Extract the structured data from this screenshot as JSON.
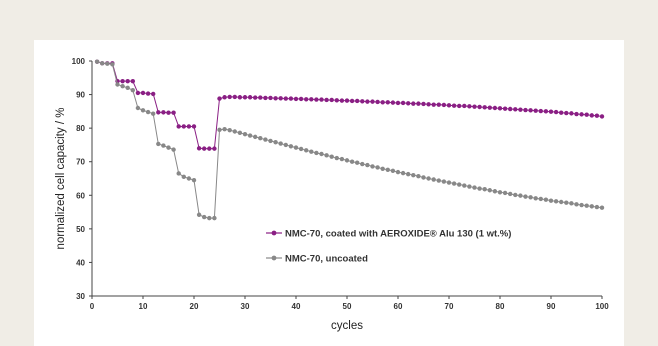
{
  "chart_data": {
    "type": "line",
    "xlabel": "cycles",
    "ylabel": "normalized cell capacity / %",
    "xlim": [
      0,
      100
    ],
    "ylim": [
      30,
      100
    ],
    "x_ticks": [
      "0",
      "10",
      "20",
      "30",
      "40",
      "50",
      "60",
      "70",
      "80",
      "90",
      "100"
    ],
    "y_ticks": [
      "30",
      "40",
      "50",
      "60",
      "70",
      "80",
      "90",
      "100"
    ],
    "legend_position": "center-left",
    "series": [
      {
        "name": "NMC-70, coated with AEROXIDE® Alu 130 (1 wt.%)",
        "color": "#8a1f84",
        "x": [
          1,
          2,
          3,
          4,
          5,
          6,
          7,
          8,
          9,
          10,
          11,
          12,
          13,
          14,
          15,
          16,
          17,
          18,
          19,
          20,
          21,
          22,
          23,
          24,
          25,
          26,
          27,
          28,
          29,
          30,
          31,
          32,
          33,
          34,
          35,
          36,
          37,
          38,
          39,
          40,
          41,
          42,
          43,
          44,
          45,
          46,
          47,
          48,
          49,
          50,
          51,
          52,
          53,
          54,
          55,
          56,
          57,
          58,
          59,
          60,
          61,
          62,
          63,
          64,
          65,
          66,
          67,
          68,
          69,
          70,
          71,
          72,
          73,
          74,
          75,
          76,
          77,
          78,
          79,
          80,
          81,
          82,
          83,
          84,
          85,
          86,
          87,
          88,
          89,
          90,
          91,
          92,
          93,
          94,
          95,
          96,
          97,
          98,
          99,
          100
        ],
        "y": [
          99.8,
          99.3,
          99.3,
          99.3,
          94.0,
          94.0,
          94.0,
          94.0,
          90.5,
          90.5,
          90.3,
          90.2,
          84.7,
          84.7,
          84.6,
          84.6,
          80.5,
          80.5,
          80.5,
          80.5,
          74.0,
          73.9,
          73.9,
          73.9,
          88.8,
          89.2,
          89.3,
          89.3,
          89.2,
          89.2,
          89.2,
          89.1,
          89.1,
          89.0,
          89.0,
          88.9,
          88.9,
          88.8,
          88.8,
          88.7,
          88.7,
          88.6,
          88.6,
          88.5,
          88.5,
          88.4,
          88.4,
          88.3,
          88.2,
          88.2,
          88.1,
          88.1,
          88.0,
          87.9,
          87.9,
          87.8,
          87.7,
          87.7,
          87.6,
          87.5,
          87.5,
          87.4,
          87.3,
          87.3,
          87.2,
          87.1,
          87.0,
          87.0,
          86.9,
          86.8,
          86.7,
          86.6,
          86.6,
          86.5,
          86.4,
          86.3,
          86.2,
          86.1,
          86.0,
          85.9,
          85.8,
          85.7,
          85.6,
          85.5,
          85.4,
          85.3,
          85.2,
          85.1,
          85.0,
          84.9,
          84.8,
          84.6,
          84.5,
          84.4,
          84.2,
          84.1,
          84.0,
          83.8,
          83.7,
          83.5
        ]
      },
      {
        "name": "NMC-70, uncoated",
        "color": "#888888",
        "x": [
          1,
          2,
          3,
          4,
          5,
          6,
          7,
          8,
          9,
          10,
          11,
          12,
          13,
          14,
          15,
          16,
          17,
          18,
          19,
          20,
          21,
          22,
          23,
          24,
          25,
          26,
          27,
          28,
          29,
          30,
          31,
          32,
          33,
          34,
          35,
          36,
          37,
          38,
          39,
          40,
          41,
          42,
          43,
          44,
          45,
          46,
          47,
          48,
          49,
          50,
          51,
          52,
          53,
          54,
          55,
          56,
          57,
          58,
          59,
          60,
          61,
          62,
          63,
          64,
          65,
          66,
          67,
          68,
          69,
          70,
          71,
          72,
          73,
          74,
          75,
          76,
          77,
          78,
          79,
          80,
          81,
          82,
          83,
          84,
          85,
          86,
          87,
          88,
          89,
          90,
          91,
          92,
          93,
          94,
          95,
          96,
          97,
          98,
          99,
          100
        ],
        "y": [
          99.8,
          99.3,
          99.2,
          99.0,
          93.0,
          92.5,
          92.0,
          91.3,
          86.0,
          85.3,
          84.8,
          84.3,
          75.3,
          74.8,
          74.2,
          73.6,
          66.5,
          65.5,
          65.0,
          64.5,
          54.2,
          53.5,
          53.2,
          53.2,
          79.5,
          79.7,
          79.4,
          79.0,
          78.6,
          78.2,
          77.8,
          77.4,
          77.0,
          76.6,
          76.2,
          75.8,
          75.4,
          75.0,
          74.6,
          74.2,
          73.8,
          73.4,
          73.0,
          72.6,
          72.3,
          71.9,
          71.5,
          71.1,
          70.8,
          70.4,
          70.0,
          69.7,
          69.3,
          69.0,
          68.6,
          68.3,
          67.9,
          67.6,
          67.3,
          66.9,
          66.6,
          66.3,
          66.0,
          65.7,
          65.3,
          65.0,
          64.7,
          64.4,
          64.1,
          63.8,
          63.5,
          63.2,
          62.9,
          62.6,
          62.3,
          62.0,
          61.8,
          61.5,
          61.2,
          60.9,
          60.7,
          60.4,
          60.1,
          59.9,
          59.6,
          59.4,
          59.1,
          58.9,
          58.7,
          58.4,
          58.2,
          58.0,
          57.8,
          57.6,
          57.3,
          57.1,
          56.9,
          56.7,
          56.5,
          56.3
        ]
      }
    ]
  }
}
